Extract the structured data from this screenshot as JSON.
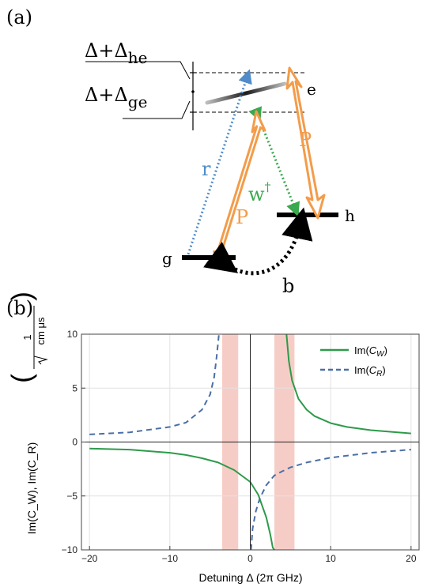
{
  "panel_a": {
    "label": "(a)",
    "detuning_he": "Δ+Δ",
    "detuning_he_sub": "he",
    "detuning_ge": "Δ+Δ",
    "detuning_ge_sub": "ge",
    "state_e": "e",
    "state_h": "h",
    "state_g": "g",
    "field_r": "r",
    "field_w": "w",
    "field_w_sup": "†",
    "field_p_left": "P",
    "field_p_right": "P",
    "coupling_b": "b",
    "colors": {
      "pump": "#f39c4a",
      "r": "#4f8cc9",
      "w": "#3aa84e",
      "b": "#000000"
    }
  },
  "panel_b": {
    "label": "(b)",
    "ylabel_main": "Im(C_W), Im(C_R)",
    "ylabel_unit_num": "1",
    "ylabel_unit_den": "cm μs",
    "xlabel": "Detuning Δ (2π GHz)"
  },
  "chart_data": {
    "type": "line",
    "xlim": [
      -21,
      21
    ],
    "ylim": [
      -10,
      10
    ],
    "xticks": [
      -20,
      -10,
      0,
      10,
      20
    ],
    "yticks": [
      -10,
      -5,
      0,
      5,
      10
    ],
    "grid": true,
    "legend_position": "top-right",
    "shaded_bands": [
      {
        "x0": -3.5,
        "x1": -1.5,
        "color": "#f6cdc6"
      },
      {
        "x0": 3.0,
        "x1": 5.5,
        "color": "#f6cdc6"
      }
    ],
    "series": [
      {
        "name": "Im(C_W)",
        "color": "#2e9a4a",
        "dash": "solid",
        "segments": [
          {
            "x": [
              -20,
              -15,
              -10,
              -8,
              -6,
              -4,
              -2,
              0,
              1,
              2,
              2.5,
              2.8,
              3.0
            ],
            "y": [
              -0.6,
              -0.7,
              -1.0,
              -1.2,
              -1.5,
              -1.9,
              -2.6,
              -3.7,
              -4.9,
              -7.0,
              -8.6,
              -9.8,
              -10
            ]
          },
          {
            "x": [
              4.5,
              4.8,
              5.2,
              6,
              7,
              8,
              10,
              12,
              15,
              20
            ],
            "y": [
              10,
              7.5,
              5.7,
              4.0,
              3.0,
              2.4,
              1.75,
              1.4,
              1.1,
              0.8
            ]
          }
        ]
      },
      {
        "name": "Im(C_R)",
        "color": "#4a6fa5",
        "dash": "dashed",
        "segments": [
          {
            "x": [
              -20,
              -15,
              -10,
              -8,
              -6,
              -5,
              -4.5,
              -4.2,
              -3.9
            ],
            "y": [
              0.7,
              0.9,
              1.4,
              1.8,
              3.0,
              4.4,
              6.0,
              7.8,
              10
            ]
          },
          {
            "x": [
              0.1,
              0.3,
              0.7,
              1.2,
              2,
              3,
              4,
              5,
              7,
              10,
              15,
              20
            ],
            "y": [
              -10,
              -8.0,
              -6.4,
              -5.2,
              -4.0,
              -3.1,
              -2.7,
              -2.35,
              -1.9,
              -1.45,
              -1.0,
              -0.7
            ]
          }
        ]
      }
    ]
  }
}
